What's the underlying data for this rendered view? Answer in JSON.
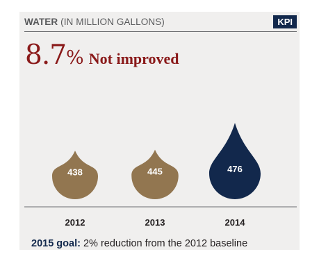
{
  "header": {
    "title_bold": "WATER",
    "title_rest": "(IN MILLION GALLONS)",
    "badge": "KPI"
  },
  "headline": {
    "value": "8.7",
    "unit": "%",
    "status": "Not improved"
  },
  "chart_data": {
    "type": "bar",
    "categories": [
      "2012",
      "2013",
      "2014"
    ],
    "values": [
      438,
      445,
      476
    ],
    "value_labels": [
      "438",
      "445",
      "476"
    ],
    "colors": [
      "#927650",
      "#927650",
      "#12284c"
    ],
    "ylim": [
      0,
      476
    ]
  },
  "footer": {
    "goal_label": "2015 goal:",
    "goal_text": "2% reduction from the 2012 baseline"
  }
}
